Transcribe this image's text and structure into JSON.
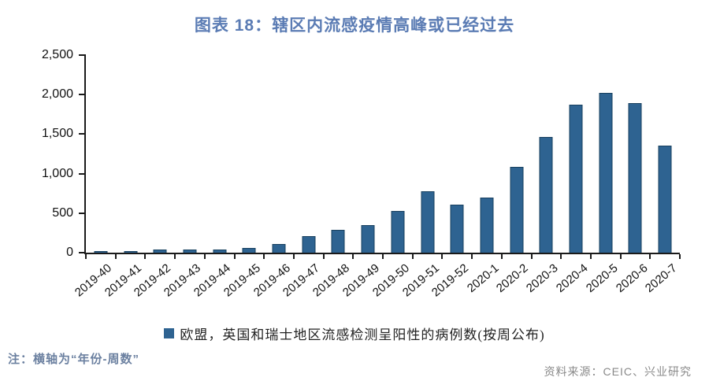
{
  "title": "图表 18：辖区内流感疫情高峰或已经过去",
  "note": "注：横轴为“年份-周数”",
  "source": "资料来源：CEIC、兴业研究",
  "legend": {
    "label": "欧盟，英国和瑞士地区流感检测呈阳性的病例数(按周公布)"
  },
  "colors": {
    "bar_fill": "#2e6391",
    "bar_border": "#18405f",
    "title": "#5b7cb4",
    "note": "#6b80a0",
    "source": "#8a8a8a",
    "axis": "#1a1a1a"
  },
  "chart_data": {
    "type": "bar",
    "title": "图表 18：辖区内流感疫情高峰或已经过去",
    "xlabel": "年份-周数",
    "ylabel": "",
    "categories": [
      "2019-40",
      "2019-41",
      "2019-42",
      "2019-43",
      "2019-44",
      "2019-45",
      "2019-46",
      "2019-47",
      "2019-48",
      "2019-49",
      "2019-50",
      "2019-51",
      "2019-52",
      "2020-1",
      "2020-2",
      "2020-3",
      "2020-4",
      "2020-5",
      "2020-6",
      "2020-7"
    ],
    "values": [
      20,
      20,
      40,
      40,
      40,
      55,
      105,
      205,
      290,
      350,
      530,
      780,
      610,
      695,
      1085,
      1460,
      1870,
      2020,
      1890,
      1355
    ],
    "ylim": [
      0,
      2500
    ],
    "yticks": [
      0,
      500,
      1000,
      1500,
      2000,
      2500
    ],
    "ytick_labels": [
      "0",
      "500",
      "1,000",
      "1,500",
      "2,000",
      "2,500"
    ],
    "grid": false,
    "legend_entries": [
      "欧盟，英国和瑞士地区流感检测呈阳性的病例数(按周公布)"
    ],
    "legend_position": "bottom"
  }
}
